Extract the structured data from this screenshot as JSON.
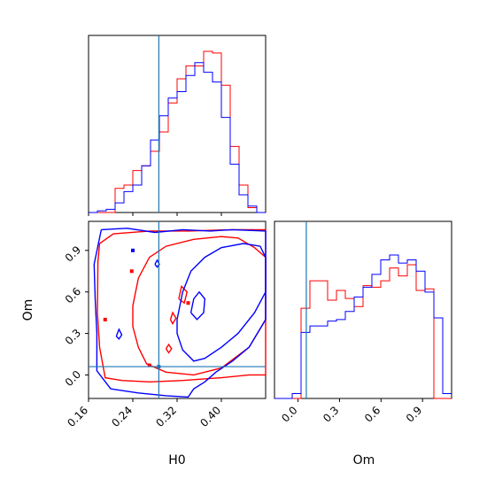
{
  "chart_data": {
    "type": "corner",
    "parameters": [
      "H0",
      "Om"
    ],
    "truths": {
      "H0": 0.287,
      "Om": 0.06
    },
    "colors": {
      "red": "#ff0000",
      "blue": "#0000ff",
      "truth": "#1f77b4"
    },
    "axes": {
      "H0": {
        "label": "H0",
        "range": [
          0.16,
          0.48
        ],
        "ticks": [
          "0.16",
          "0.24",
          "0.32",
          "0.40"
        ],
        "tick_values": [
          0.16,
          0.24,
          0.32,
          0.4
        ]
      },
      "Om_joint": {
        "label": "Om",
        "range": [
          -0.17,
          1.11
        ],
        "ticks": [
          "0.0",
          "0.3",
          "0.6",
          "0.9"
        ],
        "tick_values": [
          0.0,
          0.3,
          0.6,
          0.9
        ]
      },
      "Om_marginal": {
        "label": "Om",
        "range": [
          -0.17,
          1.11
        ],
        "ticks": [
          "0.0",
          "0.3",
          "0.6",
          "0.9"
        ],
        "tick_values": [
          0.0,
          0.3,
          0.6,
          0.9
        ]
      }
    },
    "histograms": {
      "H0": {
        "bin_edges": [
          0.16,
          0.176,
          0.192,
          0.208,
          0.224,
          0.24,
          0.256,
          0.272,
          0.288,
          0.304,
          0.32,
          0.336,
          0.352,
          0.368,
          0.384,
          0.4,
          0.416,
          0.432,
          0.448,
          0.464,
          0.48
        ],
        "red": [
          0.0,
          0.0,
          0.0,
          0.15,
          0.17,
          0.26,
          0.29,
          0.38,
          0.5,
          0.68,
          0.83,
          0.91,
          0.91,
          1.0,
          0.99,
          0.79,
          0.41,
          0.17,
          0.03,
          0.0
        ],
        "blue": [
          0.0,
          0.01,
          0.02,
          0.06,
          0.13,
          0.17,
          0.29,
          0.45,
          0.6,
          0.71,
          0.75,
          0.85,
          0.93,
          0.87,
          0.81,
          0.59,
          0.3,
          0.11,
          0.04,
          0.0
        ]
      },
      "Om": {
        "bin_edges": [
          -0.17,
          -0.106,
          -0.042,
          0.022,
          0.086,
          0.15,
          0.214,
          0.278,
          0.342,
          0.406,
          0.47,
          0.534,
          0.598,
          0.662,
          0.726,
          0.79,
          0.854,
          0.918,
          0.982,
          1.046,
          1.11
        ],
        "red": [
          0.0,
          0.0,
          0.0,
          0.56,
          0.73,
          0.73,
          0.61,
          0.67,
          0.62,
          0.57,
          0.7,
          0.69,
          0.73,
          0.81,
          0.76,
          0.83,
          0.67,
          0.68,
          0.0,
          0.0
        ],
        "blue": [
          0.0,
          0.0,
          0.03,
          0.41,
          0.45,
          0.45,
          0.48,
          0.49,
          0.54,
          0.63,
          0.69,
          0.77,
          0.86,
          0.89,
          0.84,
          0.86,
          0.79,
          0.66,
          0.5,
          0.03
        ]
      }
    },
    "contours": {
      "red": [
        [
          [
            0.177,
            0.82
          ],
          [
            0.18,
            0.95
          ],
          [
            0.205,
            1.02
          ],
          [
            0.27,
            1.04
          ],
          [
            0.34,
            1.04
          ],
          [
            0.42,
            1.05
          ],
          [
            0.48,
            1.05
          ],
          [
            0.48,
            0.0
          ],
          [
            0.45,
            0.0
          ],
          [
            0.4,
            -0.02
          ],
          [
            0.33,
            -0.04
          ],
          [
            0.27,
            -0.05
          ],
          [
            0.22,
            -0.04
          ],
          [
            0.19,
            -0.02
          ],
          [
            0.18,
            0.2
          ],
          [
            0.176,
            0.45
          ],
          [
            0.177,
            0.82
          ]
        ],
        [
          [
            0.24,
            0.5
          ],
          [
            0.25,
            0.7
          ],
          [
            0.27,
            0.85
          ],
          [
            0.3,
            0.93
          ],
          [
            0.35,
            0.98
          ],
          [
            0.4,
            1.0
          ],
          [
            0.43,
            0.99
          ],
          [
            0.46,
            0.92
          ],
          [
            0.48,
            0.85
          ],
          [
            0.48,
            0.4
          ],
          [
            0.45,
            0.2
          ],
          [
            0.4,
            0.05
          ],
          [
            0.35,
            0.0
          ],
          [
            0.3,
            0.02
          ],
          [
            0.265,
            0.08
          ],
          [
            0.25,
            0.2
          ],
          [
            0.24,
            0.35
          ],
          [
            0.24,
            0.5
          ]
        ],
        [
          [
            0.323,
            0.55
          ],
          [
            0.328,
            0.64
          ],
          [
            0.338,
            0.6
          ],
          [
            0.333,
            0.52
          ],
          [
            0.323,
            0.55
          ]
        ],
        [
          [
            0.308,
            0.4
          ],
          [
            0.312,
            0.45
          ],
          [
            0.318,
            0.41
          ],
          [
            0.312,
            0.37
          ],
          [
            0.308,
            0.4
          ]
        ],
        [
          [
            0.3,
            0.19
          ],
          [
            0.305,
            0.22
          ],
          [
            0.31,
            0.19
          ],
          [
            0.305,
            0.16
          ],
          [
            0.3,
            0.19
          ]
        ]
      ],
      "blue": [
        [
          [
            0.183,
            1.05
          ],
          [
            0.23,
            1.06
          ],
          [
            0.28,
            1.03
          ],
          [
            0.33,
            1.05
          ],
          [
            0.38,
            1.04
          ],
          [
            0.42,
            1.05
          ],
          [
            0.48,
            1.04
          ],
          [
            0.48,
            0.4
          ],
          [
            0.45,
            0.2
          ],
          [
            0.42,
            0.1
          ],
          [
            0.39,
            0.02
          ],
          [
            0.37,
            -0.05
          ],
          [
            0.35,
            -0.1
          ],
          [
            0.34,
            -0.16
          ],
          [
            0.3,
            -0.15
          ],
          [
            0.25,
            -0.13
          ],
          [
            0.2,
            -0.1
          ],
          [
            0.175,
            0.03
          ],
          [
            0.175,
            0.3
          ],
          [
            0.172,
            0.55
          ],
          [
            0.17,
            0.8
          ],
          [
            0.183,
            1.05
          ]
        ],
        [
          [
            0.32,
            0.4
          ],
          [
            0.33,
            0.6
          ],
          [
            0.345,
            0.75
          ],
          [
            0.37,
            0.85
          ],
          [
            0.4,
            0.92
          ],
          [
            0.44,
            0.95
          ],
          [
            0.47,
            0.93
          ],
          [
            0.48,
            0.85
          ],
          [
            0.48,
            0.6
          ],
          [
            0.46,
            0.45
          ],
          [
            0.43,
            0.3
          ],
          [
            0.4,
            0.2
          ],
          [
            0.37,
            0.12
          ],
          [
            0.35,
            0.1
          ],
          [
            0.33,
            0.18
          ],
          [
            0.32,
            0.3
          ],
          [
            0.32,
            0.4
          ]
        ],
        [
          [
            0.345,
            0.45
          ],
          [
            0.35,
            0.55
          ],
          [
            0.36,
            0.6
          ],
          [
            0.37,
            0.55
          ],
          [
            0.368,
            0.45
          ],
          [
            0.356,
            0.4
          ],
          [
            0.345,
            0.45
          ]
        ],
        [
          [
            0.21,
            0.28
          ],
          [
            0.215,
            0.33
          ],
          [
            0.22,
            0.29
          ],
          [
            0.215,
            0.26
          ],
          [
            0.21,
            0.28
          ]
        ],
        [
          [
            0.28,
            0.8
          ],
          [
            0.284,
            0.83
          ],
          [
            0.288,
            0.8
          ],
          [
            0.284,
            0.78
          ],
          [
            0.28,
            0.8
          ]
        ]
      ]
    },
    "truth_markers": [
      {
        "H0": 0.287,
        "Om": 0.06,
        "color": "#1f77b4"
      },
      {
        "H0": 0.27,
        "Om": 0.07,
        "color": "#ff0000"
      },
      {
        "H0": 0.238,
        "Om": 0.75,
        "color": "#ff0000"
      },
      {
        "H0": 0.24,
        "Om": 0.9,
        "color": "#0000ff"
      },
      {
        "H0": 0.34,
        "Om": 0.52,
        "color": "#ff0000"
      },
      {
        "H0": 0.19,
        "Om": 0.4,
        "color": "#ff0000"
      }
    ]
  }
}
